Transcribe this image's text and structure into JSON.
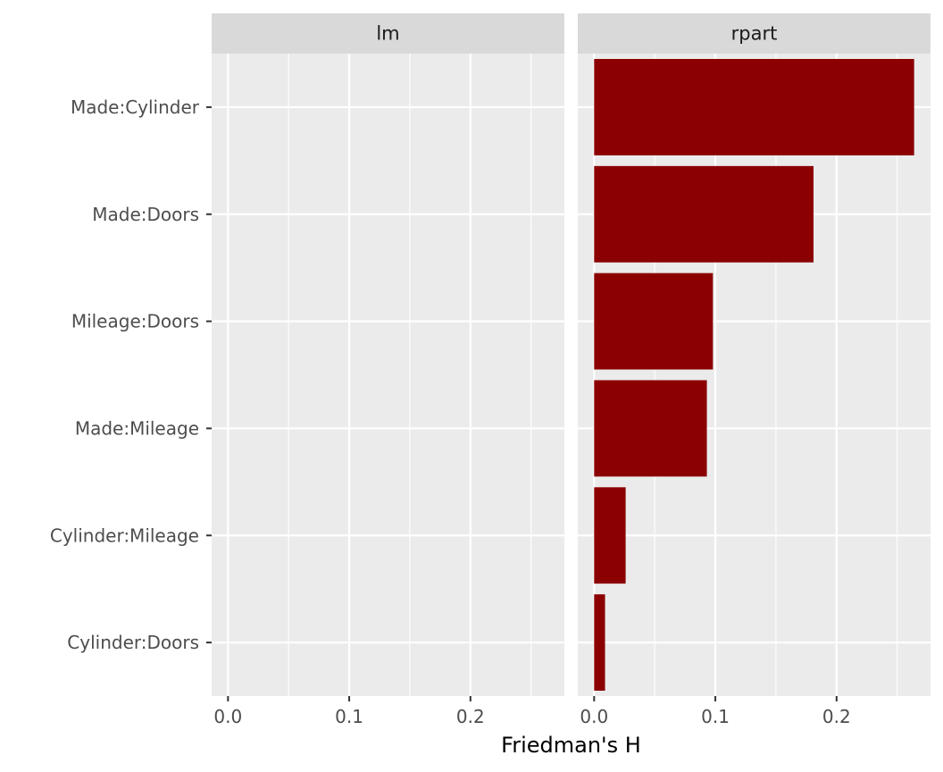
{
  "chart_data": {
    "type": "bar",
    "orientation": "horizontal",
    "xlabel": "Friedman's H",
    "ylabel": "",
    "xlim": [
      -0.0135,
      0.2775
    ],
    "x_ticks": [
      0.0,
      0.1,
      0.2
    ],
    "x_tick_labels": [
      "0.0",
      "0.1",
      "0.2"
    ],
    "x_minor_ticks": [
      0.05,
      0.15,
      0.25
    ],
    "categories": [
      "Made:Cylinder",
      "Made:Doors",
      "Mileage:Doors",
      "Made:Mileage",
      "Cylinder:Mileage",
      "Cylinder:Doors"
    ],
    "panels": [
      {
        "name": "lm",
        "values": [
          0,
          0,
          0,
          0,
          0,
          0
        ]
      },
      {
        "name": "rpart",
        "values": [
          0.264,
          0.181,
          0.098,
          0.093,
          0.026,
          0.009
        ]
      }
    ],
    "bar_color": "#8B0000",
    "panel_background": "#EBEBEB",
    "strip_background": "#D9D9D9",
    "grid": true,
    "legend": "none"
  }
}
